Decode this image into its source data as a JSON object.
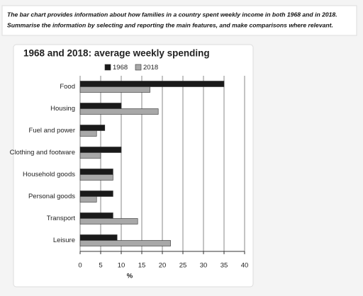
{
  "prompt": {
    "lines": [
      "The bar chart provides information about how families in a country spent weekly income in both 1968 and in 2018.",
      "Summarise the information by selecting and reporting the main features, and make comparisons where relevant."
    ]
  },
  "chart_data": {
    "type": "hbar",
    "title": "1968 and 2018: average weekly spending",
    "categories": [
      "Food",
      "Housing",
      "Fuel and power",
      "Clothing and footware",
      "Household goods",
      "Personal goods",
      "Transport",
      "Leisure"
    ],
    "series": [
      {
        "name": "1968",
        "color": "#1a1a1a",
        "values": [
          35,
          10,
          6,
          10,
          8,
          8,
          8,
          9
        ]
      },
      {
        "name": "2018",
        "color": "#a8a8a8",
        "values": [
          17,
          19,
          4,
          5,
          8,
          4,
          14,
          22
        ]
      }
    ],
    "x_label": "%",
    "xlim": [
      0,
      40
    ],
    "xticks": [
      0,
      5,
      10,
      15,
      20,
      25,
      30,
      35,
      40
    ],
    "grid": true
  }
}
